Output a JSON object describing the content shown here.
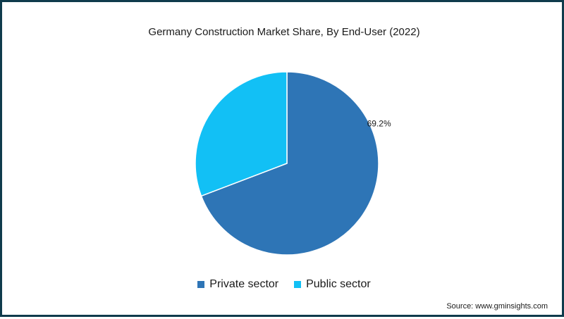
{
  "chart_data": {
    "type": "pie",
    "title": "Germany Construction Market Share, By End-User (2022)",
    "categories": [
      "Private sector",
      "Public sector"
    ],
    "values": [
      69.2,
      30.8
    ],
    "colors": [
      "#2e75b6",
      "#12c0f5"
    ],
    "data_labels": [
      "69.2%",
      ""
    ],
    "legend_position": "bottom"
  },
  "source": "Source: www.gminsights.com"
}
